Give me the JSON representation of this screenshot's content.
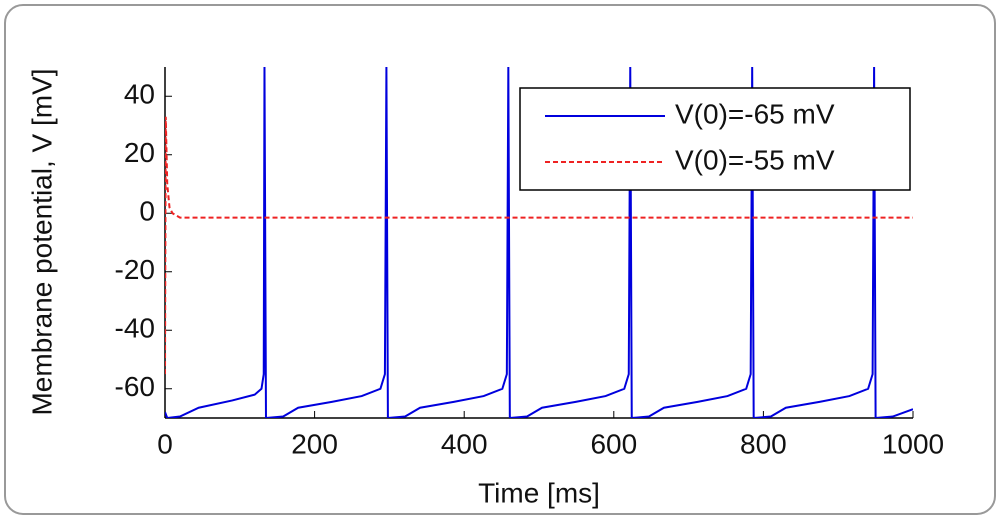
{
  "chart_data": {
    "type": "line",
    "xlabel": "Time [ms]",
    "ylabel": "Membrane potential, V [mV]",
    "xlim": [
      0,
      1000
    ],
    "xticks": [
      0,
      200,
      400,
      600,
      800,
      1000
    ],
    "ylim": [
      -70,
      50
    ],
    "yticks": [
      -60,
      -40,
      -20,
      0,
      20,
      40
    ],
    "legend": "upper right",
    "series": [
      {
        "name": "V(0)=-65 mV",
        "color": "#0000dd",
        "style": "solid",
        "x": [
          0,
          3,
          20,
          45,
          90,
          120,
          129,
          132,
          133,
          135,
          158,
          178,
          223,
          263,
          288,
          294,
          296,
          298,
          321,
          341,
          386,
          426,
          451,
          457,
          459,
          461,
          484,
          504,
          549,
          589,
          614,
          620,
          622,
          624,
          647,
          667,
          712,
          752,
          777,
          783,
          785,
          787,
          810,
          830,
          875,
          915,
          940,
          946,
          948,
          950,
          973,
          1000
        ],
        "values": [
          -68,
          -70,
          -69.5,
          -66.5,
          -64,
          -62,
          -60,
          -55,
          50,
          -70,
          -69.5,
          -66.5,
          -64.5,
          -62.5,
          -60,
          -55,
          50,
          -70,
          -69.5,
          -66.5,
          -64.5,
          -62.5,
          -60,
          -55,
          50,
          -70,
          -69.5,
          -66.5,
          -64.5,
          -62.5,
          -60,
          -55,
          50,
          -70,
          -69.5,
          -66.5,
          -64.5,
          -62.5,
          -60,
          -55,
          50,
          -70,
          -69.5,
          -66.5,
          -64.5,
          -62.5,
          -60,
          -55,
          50,
          -70,
          -69.5,
          -67
        ]
      },
      {
        "name": "V(0)=-55 mV",
        "color": "#ee2222",
        "style": "dashed",
        "x": [
          0,
          1,
          3,
          6,
          10,
          20,
          1000
        ],
        "values": [
          -55,
          33,
          10,
          2,
          0,
          -1.5,
          -1.5
        ]
      }
    ]
  }
}
